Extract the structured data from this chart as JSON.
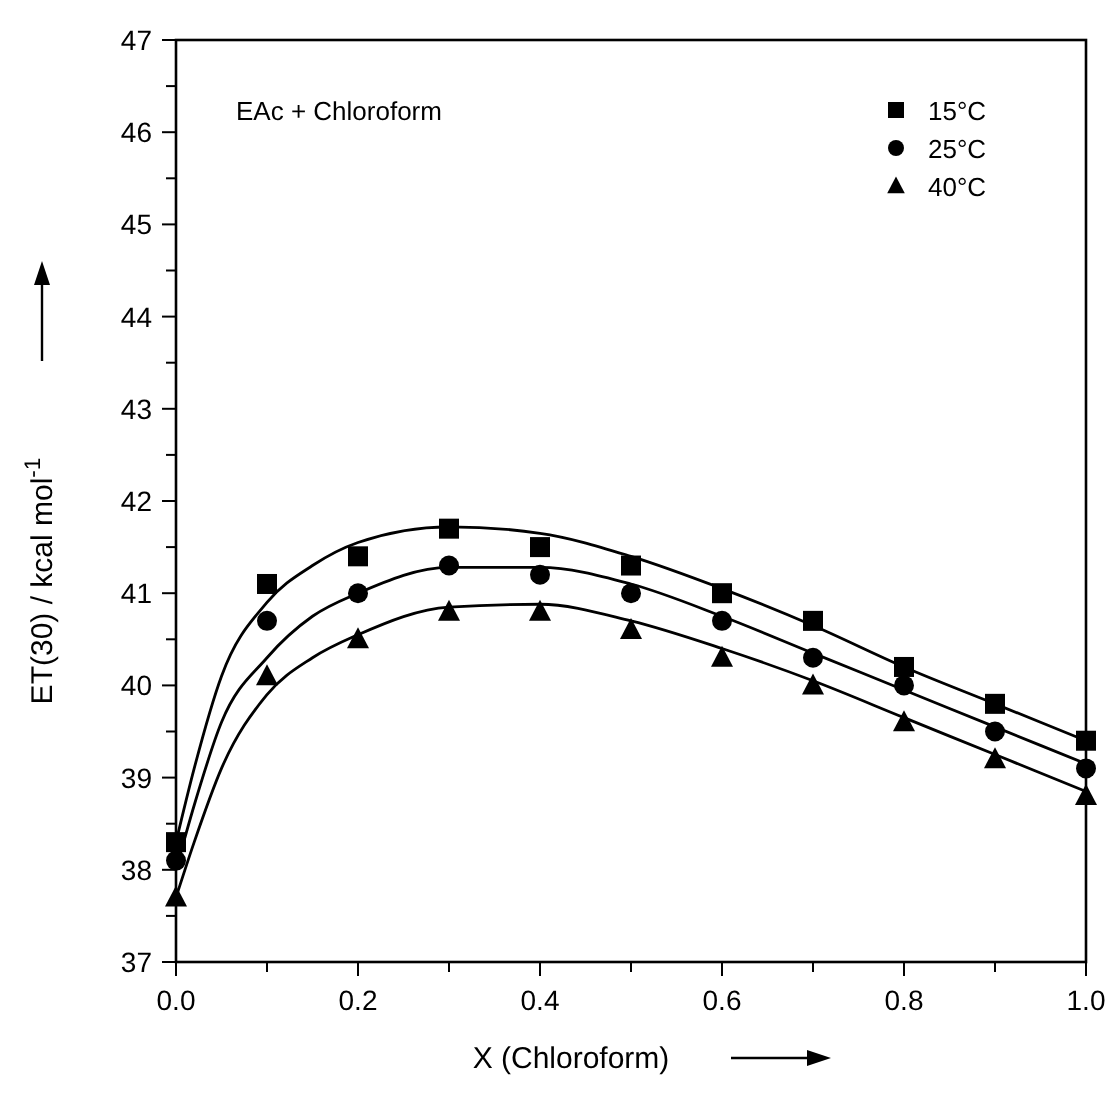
{
  "chart_data": {
    "type": "scatter",
    "xlabel": "X (Chloroform)",
    "ylabel": "ET(30) / kcal mol$^{-1}$",
    "annotations": [
      "EAc + Chloroform"
    ],
    "legend": "top right",
    "grid": false,
    "xlim": [
      0,
      1
    ],
    "ylim": [
      37,
      47
    ],
    "xticks": [
      {
        "value": 0,
        "label": "0.0"
      },
      {
        "value": 0.1,
        "label": null
      },
      0.2,
      {
        "value": 0.3,
        "label": null
      },
      0.4,
      {
        "value": 0.5,
        "label": null
      },
      0.6,
      {
        "value": 0.7,
        "label": null
      },
      0.8,
      {
        "value": 0.9,
        "label": null
      },
      {
        "value": 1,
        "label": "1.0"
      }
    ],
    "yticks": [
      37,
      {
        "value": 37.5,
        "label": null
      },
      38,
      {
        "value": 38.5,
        "label": null
      },
      39,
      {
        "value": 39.5,
        "label": null
      },
      40,
      {
        "value": 40.5,
        "label": null
      },
      41,
      {
        "value": 41.5,
        "label": null
      },
      42,
      {
        "value": 42.5,
        "label": null
      },
      43,
      {
        "value": 43.5,
        "label": null
      },
      44,
      {
        "value": 44.5,
        "label": null
      },
      45,
      {
        "value": 45.5,
        "label": null
      },
      46,
      {
        "value": 46.5,
        "label": null
      },
      47
    ],
    "x": [
      0,
      0.1,
      0.2,
      0.3,
      0.4,
      0.5,
      0.6,
      0.7,
      0.8,
      0.9,
      1.0
    ],
    "series": [
      {
        "name": "15°C",
        "color": "#000000",
        "marker": "square",
        "values": [
          38.3,
          41.1,
          41.4,
          41.7,
          41.5,
          41.3,
          41.0,
          40.7,
          40.2,
          39.8,
          39.4
        ]
      },
      {
        "name": "25°C",
        "color": "#000000",
        "marker": "circle",
        "values": [
          38.1,
          40.7,
          41.0,
          41.3,
          41.2,
          41.0,
          40.7,
          40.3,
          40.0,
          39.5,
          39.1
        ]
      },
      {
        "name": "40°C",
        "color": "#000000",
        "marker": "triangle",
        "values": [
          37.7,
          40.1,
          40.5,
          40.8,
          40.8,
          40.6,
          40.3,
          40.0,
          39.6,
          39.2,
          38.8
        ]
      },
      {
        "type": "line",
        "color": "#000000",
        "marker": "none",
        "line_style": "solid",
        "x": [
          0,
          0.02,
          0.05,
          0.1,
          0.15,
          0.2,
          0.3,
          0.4,
          0.5,
          0.6,
          0.7,
          0.8,
          0.9,
          1.0
        ],
        "values": [
          38.3,
          39.1,
          40.1,
          40.9,
          41.3,
          41.55,
          41.72,
          41.65,
          41.4,
          41.05,
          40.65,
          40.2,
          39.8,
          39.4
        ]
      },
      {
        "type": "line",
        "color": "#000000",
        "marker": "none",
        "line_style": "solid",
        "x": [
          0,
          0.02,
          0.05,
          0.1,
          0.15,
          0.2,
          0.3,
          0.4,
          0.5,
          0.6,
          0.7,
          0.8,
          0.9,
          1.0
        ],
        "values": [
          38.0,
          38.7,
          39.6,
          40.3,
          40.75,
          41.0,
          41.28,
          41.28,
          41.1,
          40.75,
          40.35,
          39.95,
          39.55,
          39.15
        ]
      },
      {
        "type": "line",
        "color": "#000000",
        "marker": "none",
        "line_style": "solid",
        "x": [
          0,
          0.02,
          0.05,
          0.1,
          0.15,
          0.2,
          0.3,
          0.4,
          0.5,
          0.6,
          0.7,
          0.8,
          0.9,
          1.0
        ],
        "values": [
          37.7,
          38.3,
          39.1,
          39.9,
          40.3,
          40.55,
          40.85,
          40.88,
          40.7,
          40.4,
          40.05,
          39.65,
          39.25,
          38.85
        ]
      }
    ]
  }
}
